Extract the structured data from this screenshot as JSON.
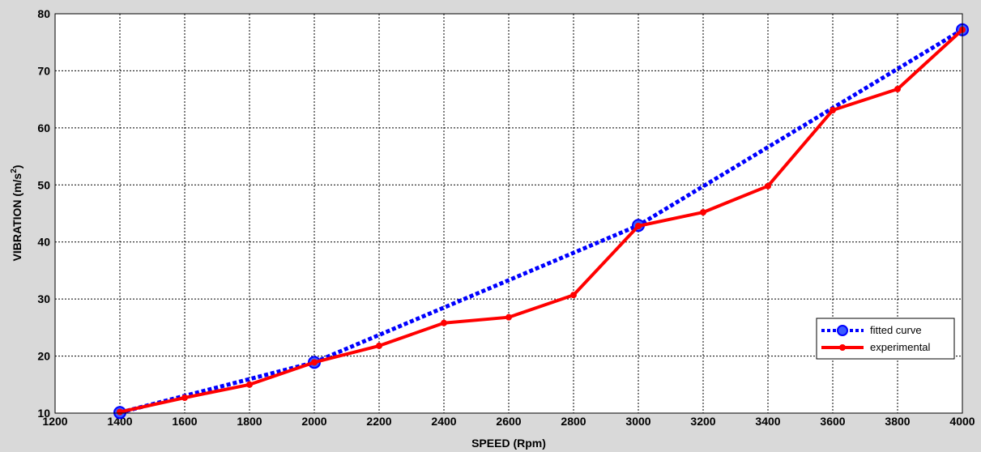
{
  "chart_data": {
    "type": "line",
    "title": "",
    "xlabel": "SPEED (Rpm)",
    "ylabel_main": "VIBRATION (m/s",
    "ylabel_sup": "2",
    "ylabel_close": ")",
    "xlim": [
      1200,
      4000
    ],
    "ylim": [
      10,
      80
    ],
    "xticks": [
      1200,
      1400,
      1600,
      1800,
      2000,
      2200,
      2400,
      2600,
      2800,
      3000,
      3200,
      3400,
      3600,
      3800,
      4000
    ],
    "yticks": [
      10,
      20,
      30,
      40,
      50,
      60,
      70,
      80
    ],
    "grid": true,
    "legend_position": "lower-right",
    "series": [
      {
        "name": "fitted curve",
        "style": "dotted",
        "color": "#0000ff",
        "marker": "circle",
        "x": [
          1400,
          2000,
          3000,
          4000
        ],
        "y": [
          10.1,
          18.9,
          42.9,
          77.2
        ]
      },
      {
        "name": "experimental",
        "style": "solid",
        "color": "#ff0000",
        "marker": "dot",
        "x": [
          1400,
          1600,
          1800,
          2000,
          2200,
          2400,
          2600,
          2800,
          3000,
          3200,
          3400,
          3600,
          3800,
          4000
        ],
        "y": [
          10.2,
          12.7,
          15.0,
          18.9,
          21.8,
          25.8,
          26.8,
          30.7,
          42.8,
          45.2,
          49.8,
          63.1,
          66.8,
          77.2
        ]
      }
    ]
  }
}
